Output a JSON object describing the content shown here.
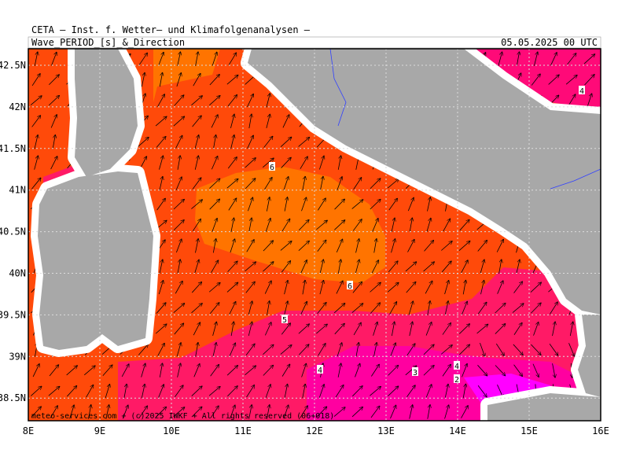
{
  "header": {
    "title": "CETA — Inst. f. Wetter— und Klimafolgenanalysen —",
    "subtitle": "Wave_PERIOD_[s]_&_Direction",
    "date": "05.05.2025 00 UTC"
  },
  "map": {
    "lon_labels": [
      "8E",
      "9E",
      "10E",
      "11E",
      "12E",
      "13E",
      "14E",
      "15E",
      "16E"
    ],
    "lat_labels": [
      "42.5N",
      "42N",
      "41.5N",
      "41N",
      "40.5N",
      "40N",
      "39.5N",
      "39N",
      "38.5N"
    ],
    "contour_labels": [
      "6",
      "6",
      "5",
      "4",
      "3",
      "4",
      "2",
      "4"
    ],
    "copyright": "meteo-services.com + (c)2025 IWKF + All rights reserved (06+018)"
  }
}
